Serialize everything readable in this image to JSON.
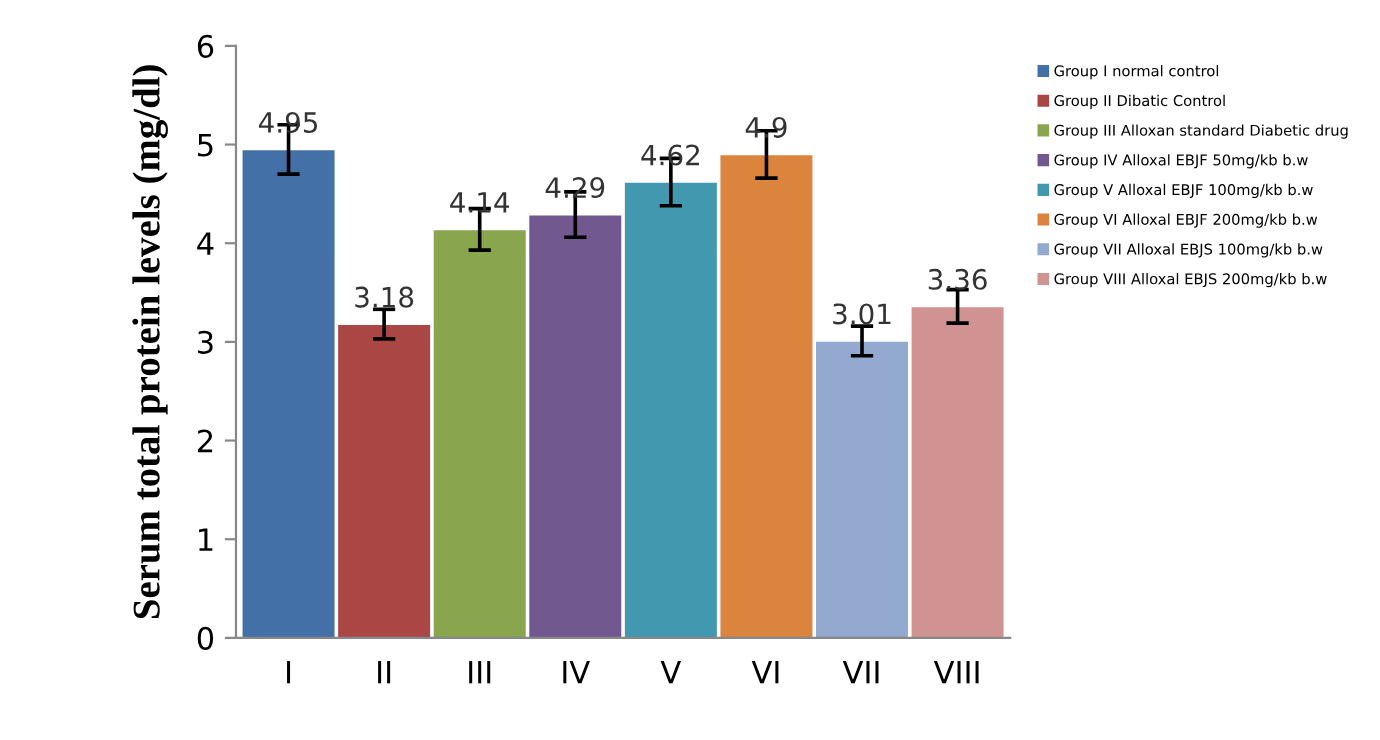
{
  "chart_data": {
    "type": "bar",
    "ylabel": "Serum total protein levels (mg/dl)",
    "categories": [
      "I",
      "II",
      "III",
      "IV",
      "V",
      "VI",
      "VII",
      "VIII"
    ],
    "series": [
      {
        "name": "Group I normal control",
        "color": "#4470a8",
        "values": [
          4.95,
          null,
          null,
          null,
          null,
          null,
          null,
          null
        ],
        "errors": [
          0.25,
          null,
          null,
          null,
          null,
          null,
          null,
          null
        ]
      },
      {
        "name": "Group II Dibatic Control",
        "color": "#aa4644",
        "values": [
          null,
          3.18,
          null,
          null,
          null,
          null,
          null,
          null
        ],
        "errors": [
          null,
          0.15,
          null,
          null,
          null,
          null,
          null,
          null
        ]
      },
      {
        "name": "Group III Alloxan standard Diabetic drug",
        "color": "#89a54e",
        "values": [
          null,
          null,
          4.14,
          null,
          null,
          null,
          null,
          null
        ],
        "errors": [
          null,
          null,
          0.21,
          null,
          null,
          null,
          null,
          null
        ]
      },
      {
        "name": "Group IV Alloxal EBJF 50mg/kb b.w",
        "color": "#71588f",
        "values": [
          null,
          null,
          null,
          4.29,
          null,
          null,
          null,
          null
        ],
        "errors": [
          null,
          null,
          null,
          0.23,
          null,
          null,
          null,
          null
        ]
      },
      {
        "name": "Group V Alloxal EBJF 100mg/kb b.w",
        "color": "#4198af",
        "values": [
          null,
          null,
          null,
          null,
          4.62,
          null,
          null,
          null
        ],
        "errors": [
          null,
          null,
          null,
          null,
          0.24,
          null,
          null,
          null
        ]
      },
      {
        "name": "Group VI Alloxal EBJF 200mg/kb b.w",
        "color": "#db843d",
        "values": [
          null,
          null,
          null,
          null,
          null,
          4.9,
          null,
          null
        ],
        "errors": [
          null,
          null,
          null,
          null,
          null,
          0.24,
          null,
          null
        ]
      },
      {
        "name": "Group VII Alloxal EBJS 100mg/kb b.w",
        "color": "#93a9cf",
        "values": [
          null,
          null,
          null,
          null,
          null,
          null,
          3.01,
          null
        ],
        "errors": [
          null,
          null,
          null,
          null,
          null,
          null,
          0.15,
          null
        ]
      },
      {
        "name": "Group VIII Alloxal EBJS 200mg/kb b.w",
        "color": "#d19392",
        "values": [
          null,
          null,
          null,
          null,
          null,
          null,
          null,
          3.36
        ],
        "errors": [
          null,
          null,
          null,
          null,
          null,
          null,
          null,
          0.17
        ]
      }
    ],
    "ylim": [
      0,
      6
    ],
    "yticks": [
      0,
      1,
      2,
      3,
      4,
      5,
      6
    ],
    "data_labels": true,
    "grid": false,
    "legend": "right"
  }
}
